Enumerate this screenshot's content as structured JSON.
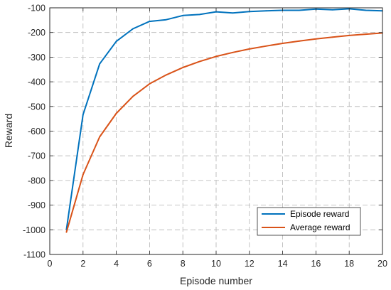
{
  "chart_data": {
    "type": "line",
    "title": "",
    "xlabel": "Episode number",
    "ylabel": "Reward",
    "xlim": [
      0,
      20
    ],
    "ylim": [
      -1100,
      -100
    ],
    "xticks": [
      0,
      2,
      4,
      6,
      8,
      10,
      12,
      14,
      16,
      18,
      20
    ],
    "yticks": [
      -1100,
      -1000,
      -900,
      -800,
      -700,
      -600,
      -500,
      -400,
      -300,
      -200,
      -100
    ],
    "grid": true,
    "grid_style": "dashed",
    "legend_position": "bottom-right",
    "series": [
      {
        "name": "Episode reward",
        "color": "#0072BD",
        "x": [
          1,
          2,
          3,
          4,
          5,
          6,
          7,
          8,
          9,
          10,
          11,
          12,
          13,
          14,
          15,
          16,
          17,
          18,
          19,
          20
        ],
        "values": [
          -1000,
          -533,
          -327,
          -236,
          -185,
          -155,
          -148,
          -131,
          -127,
          -116,
          -121,
          -115,
          -112,
          -110,
          -110,
          -105,
          -108,
          -104,
          -110,
          -112
        ]
      },
      {
        "name": "Average reward",
        "color": "#D95319",
        "x": [
          1,
          2,
          3,
          4,
          5,
          6,
          7,
          8,
          9,
          10,
          11,
          12,
          13,
          14,
          15,
          16,
          17,
          18,
          19,
          20
        ],
        "values": [
          -1010,
          -776,
          -623,
          -528,
          -459,
          -408,
          -372,
          -342,
          -318,
          -297,
          -281,
          -267,
          -255,
          -244,
          -235,
          -226,
          -219,
          -212,
          -207,
          -202
        ]
      }
    ]
  }
}
